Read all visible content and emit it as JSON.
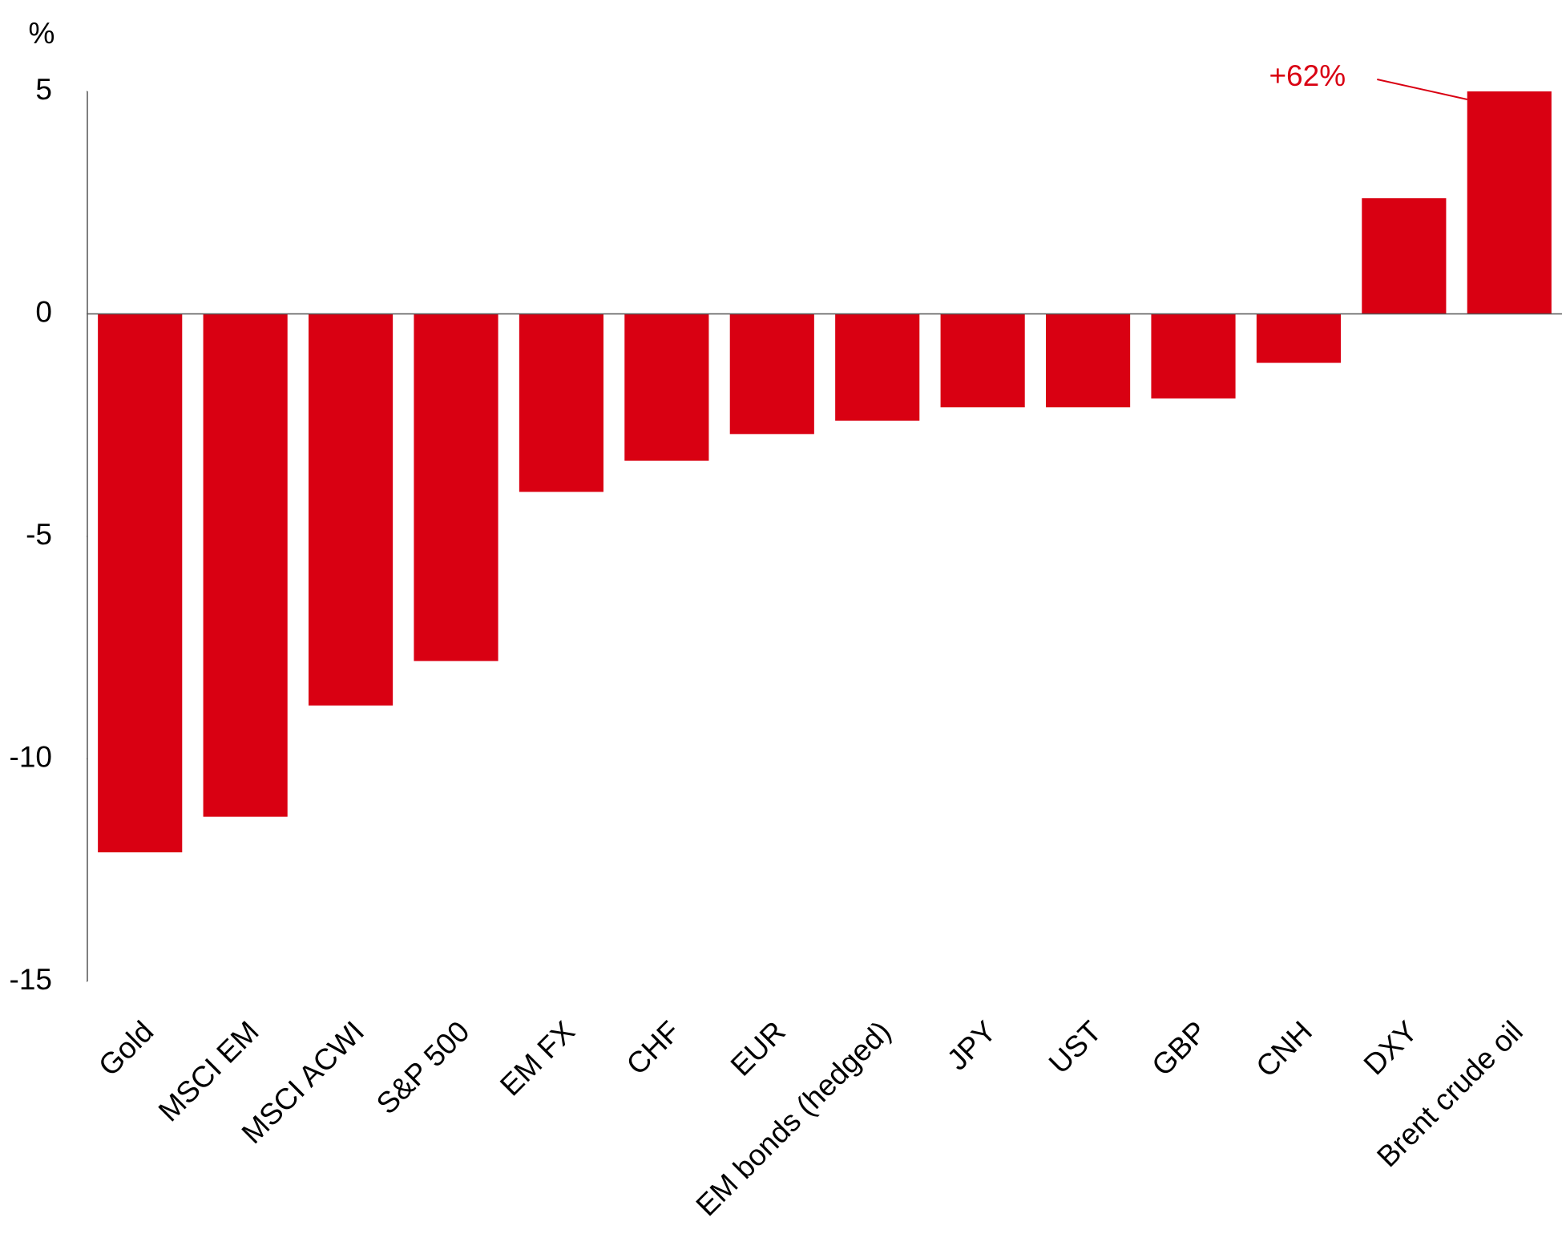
{
  "chart_data": {
    "type": "bar",
    "y_unit": "%",
    "categories": [
      "Gold",
      "MSCI EM",
      "MSCI ACWI",
      "S&P 500",
      "EM FX",
      "CHF",
      "EUR",
      "EM bonds (hedged)",
      "JPY",
      "UST",
      "GBP",
      "CNH",
      "DXY",
      "Brent crude oil"
    ],
    "values": [
      -12.1,
      -11.3,
      -8.8,
      -7.8,
      -4.0,
      -3.3,
      -2.7,
      -2.4,
      -2.1,
      -2.1,
      -1.9,
      -1.1,
      2.6,
      62
    ],
    "value_labels": [
      null,
      null,
      null,
      null,
      null,
      null,
      null,
      null,
      null,
      null,
      null,
      null,
      null,
      "+62%"
    ],
    "color": "#d90012",
    "ylim": [
      -15,
      5
    ],
    "yticks": [
      -15,
      -10,
      -5,
      0,
      5
    ],
    "grid": false
  }
}
